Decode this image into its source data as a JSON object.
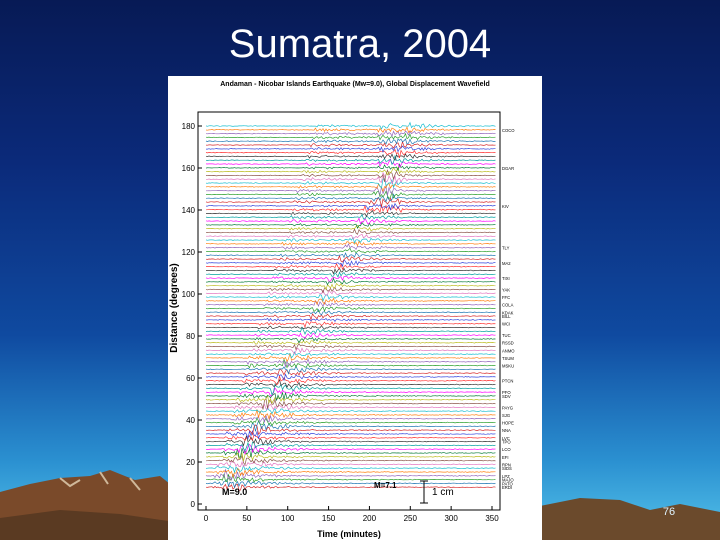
{
  "slide": {
    "title": "Sumatra, 2004",
    "page_number": "76"
  },
  "figure": {
    "title": "Andaman - Nicobar Islands Earthquake (Mw=9.0), Global Displacement Wavefield",
    "ylabel": "Distance (degrees)",
    "xlabel": "Time (minutes)",
    "x_ticks": [
      "0",
      "50",
      "100",
      "150",
      "200",
      "250",
      "300",
      "350"
    ],
    "y_ticks": [
      "0",
      "20",
      "40",
      "60",
      "80",
      "100",
      "120",
      "140",
      "160",
      "180"
    ],
    "annotations": {
      "main_event": "M=9.0",
      "aftershock": "M=7.1",
      "scale_bar": "1 cm"
    },
    "station_labels": [
      "ERDI",
      "PATO",
      "MAJO",
      "LPZ",
      "",
      "SIDS",
      "RPN",
      "",
      "EFI",
      "",
      "LCO",
      "",
      "TPO",
      "LVC",
      "",
      "NNA",
      "",
      "HOPE",
      "",
      "SJG",
      "",
      "PAYG",
      "",
      "",
      "SDV",
      "PFO",
      "",
      "",
      "PTCN",
      "",
      "",
      "",
      "MSKU",
      "",
      "TSUM",
      "",
      "ANMO",
      "",
      "RSSD",
      "",
      "TUC",
      "",
      "",
      "WCI",
      "",
      "BILL",
      "KDAK",
      "",
      "COLA",
      "",
      "FFC",
      "",
      "YAK",
      "",
      "",
      "TIXI",
      "",
      "",
      "",
      "MA2",
      "",
      "",
      "",
      "TLY",
      "",
      "",
      "",
      "",
      "",
      "",
      "",
      "",
      "",
      "",
      "KIV",
      "",
      "",
      "",
      "",
      "",
      "",
      "",
      "",
      "",
      "DGAR",
      "",
      "",
      "",
      "",
      "",
      "",
      "",
      "",
      "",
      "COCO",
      "",
      "",
      "CHTO"
    ],
    "colors": {
      "background_top": "#071a55",
      "background_bottom": "#54c3ea",
      "title": "#ffffff",
      "mountains": "#8a5a3a"
    }
  }
}
